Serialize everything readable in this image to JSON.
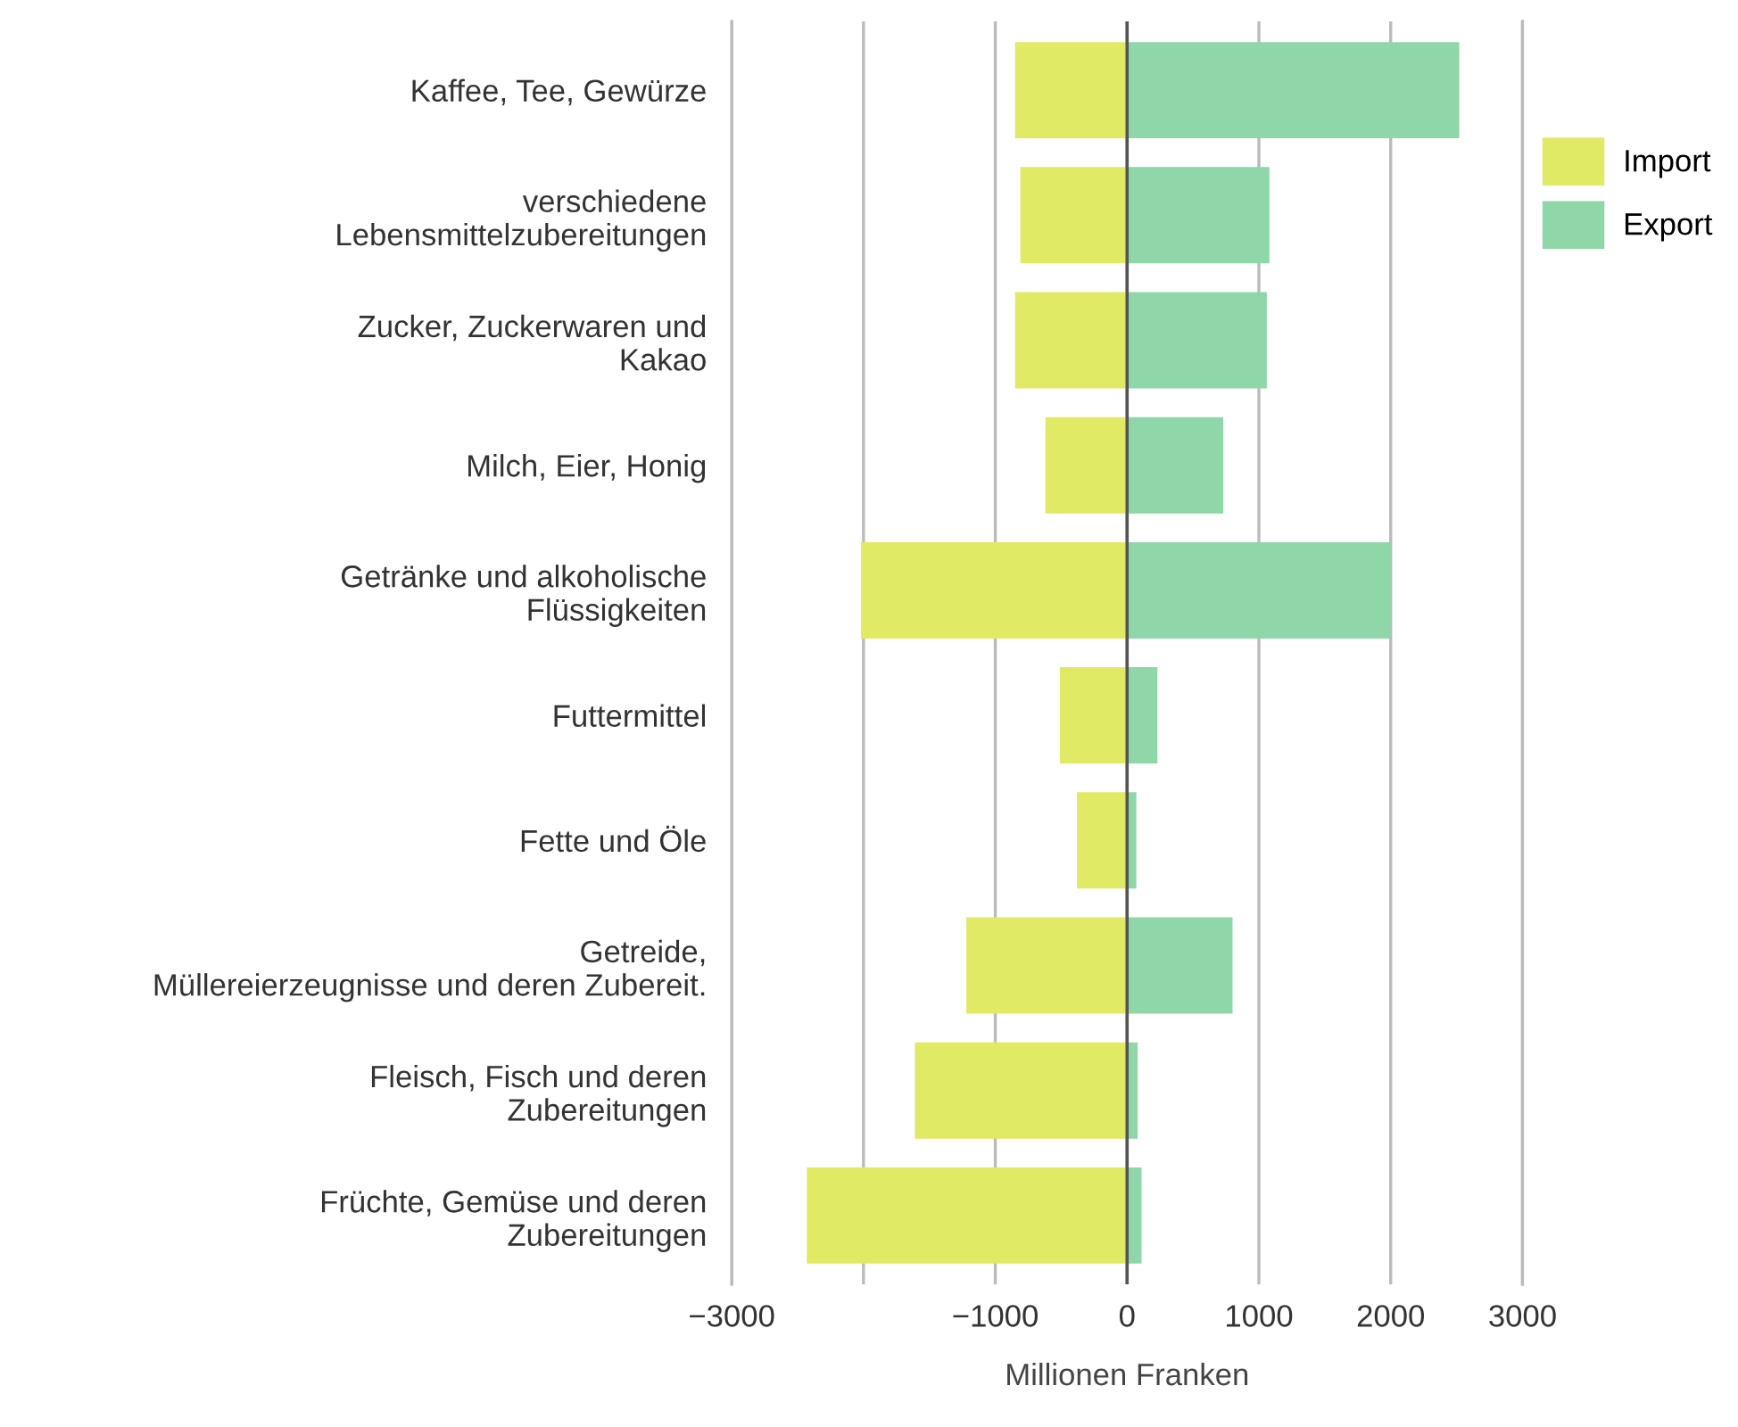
{
  "chart_data": {
    "type": "bar",
    "orientation": "horizontal",
    "xlabel": "Millionen Franken",
    "categories": [
      "Kaffee, Tee, Gewürze",
      "verschiedene\nLebensmittelzubereitungen",
      "Zucker, Zuckerwaren und\nKakao",
      "Milch, Eier, Honig",
      "Getränke und alkoholische\nFlüssigkeiten",
      "Futtermittel",
      "Fette und Öle",
      "Getreide,\nMüllereierzeugnisse und deren Zubereit.",
      "Fleisch, Fisch und deren\nZubereitungen",
      "Früchte, Gemüse und deren\nZubereitungen"
    ],
    "series": [
      {
        "name": "Import",
        "color": "#e1ea64",
        "values": [
          -850,
          -810,
          -850,
          -620,
          -2020,
          -510,
          -380,
          -1220,
          -1610,
          -2430
        ]
      },
      {
        "name": "Export",
        "color": "#8fd6a8",
        "values": [
          2520,
          1080,
          1060,
          730,
          2000,
          230,
          70,
          800,
          80,
          110
        ]
      }
    ],
    "xlim": [
      -3000,
      3000
    ],
    "xticks": [
      -3000,
      {
        "value": -2000,
        "label": null
      },
      -1000,
      0,
      1000,
      2000,
      3000
    ],
    "ref_lines": [
      {
        "axis": "x",
        "value": 0,
        "color": "#555555"
      }
    ],
    "grid": "x",
    "legend": "top right",
    "stacked": true
  }
}
